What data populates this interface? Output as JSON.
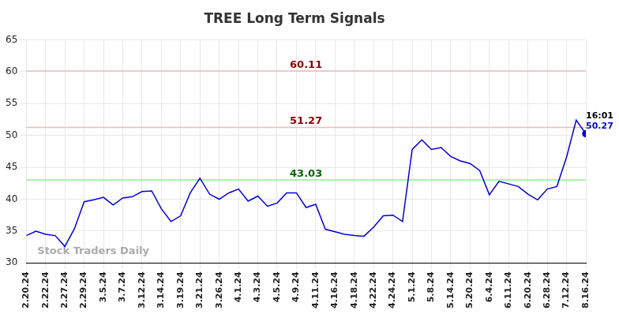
{
  "chart_data": {
    "type": "line",
    "title": "TREE Long Term Signals",
    "categories": [
      "2.20.24",
      null,
      "2.22.24",
      null,
      "2.27.24",
      null,
      "2.29.24",
      null,
      "3.5.24",
      null,
      "3.7.24",
      null,
      "3.12.24",
      null,
      "3.14.24",
      null,
      "3.19.24",
      null,
      "3.21.24",
      null,
      "3.26.24",
      null,
      "4.1.24",
      null,
      "4.3.24",
      null,
      "4.5.24",
      null,
      "4.9.24",
      null,
      "4.11.24",
      null,
      "4.16.24",
      null,
      "4.18.24",
      null,
      "4.22.24",
      null,
      "4.24.24",
      null,
      "5.1.24",
      null,
      "5.8.24",
      null,
      "5.14.24",
      null,
      "5.20.24",
      null,
      "6.4.24",
      null,
      "6.11.24",
      null,
      "6.20.24",
      null,
      "6.28.24",
      null,
      "7.12.24",
      null,
      "8.16.24"
    ],
    "values": [
      34.3,
      35.0,
      34.5,
      34.3,
      32.6,
      35.4,
      39.6,
      39.9,
      40.3,
      39.1,
      40.2,
      40.4,
      41.2,
      41.3,
      38.5,
      36.5,
      37.4,
      41.0,
      43.3,
      40.8,
      40.0,
      41.0,
      41.6,
      39.7,
      40.5,
      38.9,
      39.4,
      41.0,
      41.0,
      38.7,
      39.2,
      35.3,
      34.9,
      34.5,
      34.3,
      34.2,
      35.6,
      37.4,
      37.5,
      36.5,
      47.8,
      49.3,
      47.8,
      48.1,
      46.7,
      46.0,
      45.6,
      44.5,
      40.7,
      42.8,
      42.4,
      42.0,
      40.8,
      39.9,
      41.6,
      42.0,
      46.6,
      52.4,
      50.27
    ],
    "color": "#0000dd",
    "ylim": [
      30,
      65
    ],
    "yticks": [
      30,
      35,
      40,
      45,
      50,
      55,
      60,
      65
    ],
    "grid": true,
    "reference_lines": [
      {
        "value": 60.11,
        "label": "60.11",
        "color": "#8b0000"
      },
      {
        "value": 51.27,
        "label": "51.27",
        "color": "#8b0000"
      },
      {
        "value": 43.03,
        "label": "43.03",
        "color": "#006400"
      }
    ],
    "last_point": {
      "time": "16:01",
      "value": 50.27,
      "label": "50.27"
    },
    "watermark": "Stock Traders Daily"
  }
}
